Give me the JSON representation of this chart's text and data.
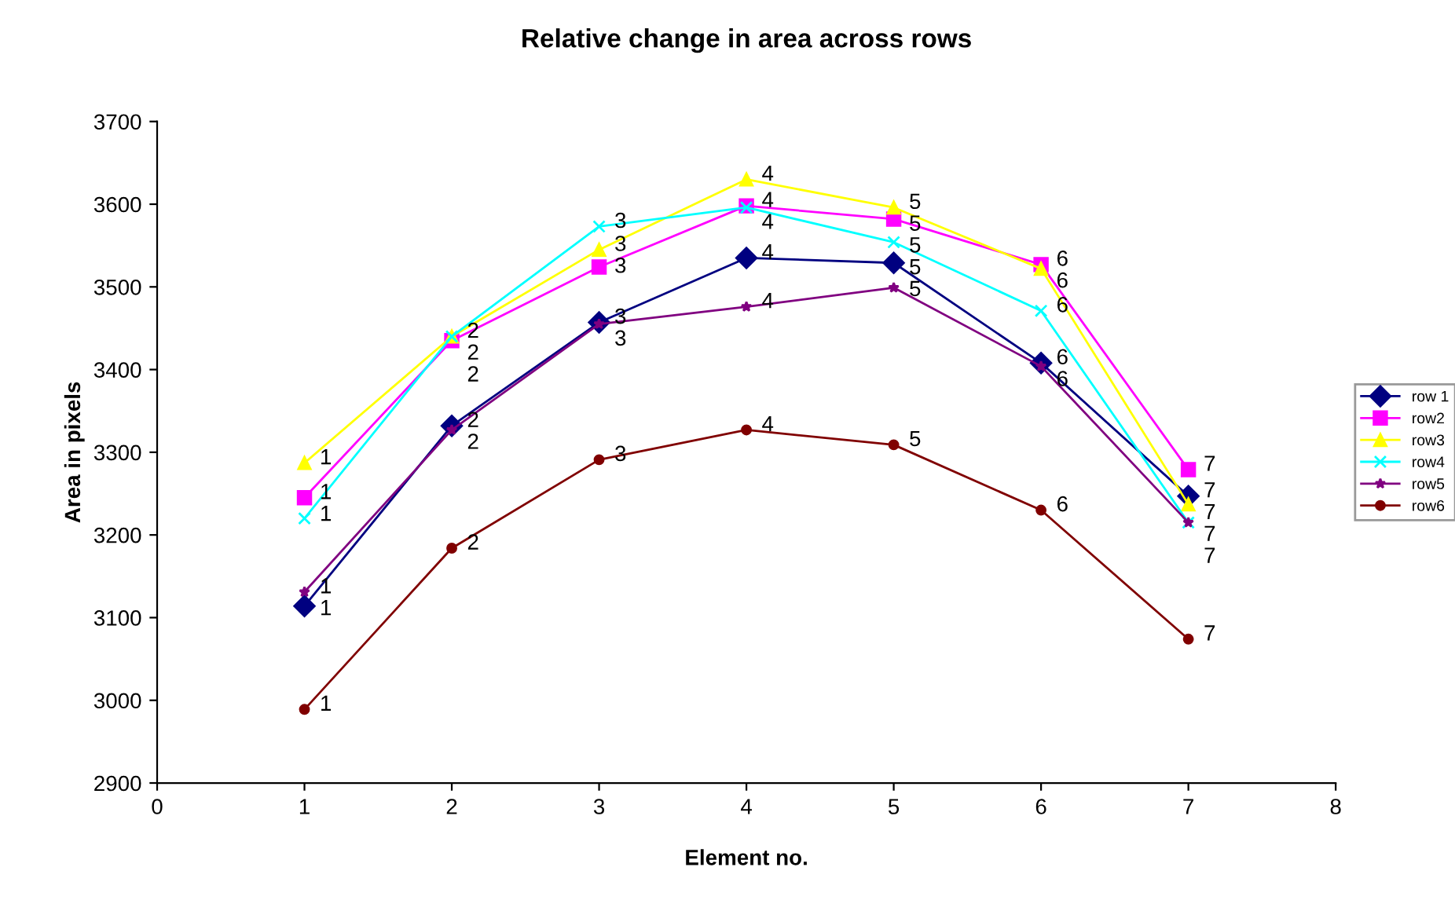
{
  "chart_data": {
    "type": "line",
    "title": "Relative change in area across rows",
    "xlabel": "Element no.",
    "ylabel": "Area in pixels",
    "x": [
      1,
      2,
      3,
      4,
      5,
      6,
      7
    ],
    "xlim": [
      0,
      8
    ],
    "xticks": [
      0,
      1,
      2,
      3,
      4,
      5,
      6,
      7,
      8
    ],
    "ylim": [
      2900,
      3700
    ],
    "yticks": [
      2900,
      3000,
      3100,
      3200,
      3300,
      3400,
      3500,
      3600,
      3700
    ],
    "grid": false,
    "legend": "right",
    "series": [
      {
        "name": "row 1",
        "color": "#000080",
        "marker": "diamond",
        "values": [
          3114,
          3332,
          3457,
          3535,
          3529,
          3408,
          3247
        ]
      },
      {
        "name": "row2",
        "color": "#ff00ff",
        "marker": "square",
        "values": [
          3245,
          3435,
          3524,
          3598,
          3582,
          3527,
          3279
        ]
      },
      {
        "name": "row3",
        "color": "#ffff00",
        "marker": "triangle",
        "values": [
          3287,
          3440,
          3545,
          3630,
          3596,
          3522,
          3237
        ]
      },
      {
        "name": "row4",
        "color": "#00ffff",
        "marker": "cross",
        "values": [
          3220,
          3440,
          3573,
          3596,
          3554,
          3471,
          3215
        ]
      },
      {
        "name": "row5",
        "color": "#800080",
        "marker": "star",
        "values": [
          3131,
          3327,
          3455,
          3476,
          3499,
          3404,
          3215
        ]
      },
      {
        "name": "row6",
        "color": "#800000",
        "marker": "circle",
        "values": [
          2989,
          3184,
          3291,
          3327,
          3309,
          3230,
          3074
        ]
      }
    ],
    "annotations": [
      {
        "text": "1",
        "x": 1,
        "y": 3114
      },
      {
        "text": "2",
        "x": 2,
        "y": 3332
      },
      {
        "text": "3",
        "x": 3,
        "y": 3457
      },
      {
        "text": "4",
        "x": 4,
        "y": 3535
      },
      {
        "text": "5",
        "x": 5,
        "y": 3529
      },
      {
        "text": "6",
        "x": 6,
        "y": 3408
      },
      {
        "text": "7",
        "x": 7,
        "y": 3247
      },
      {
        "text": "1",
        "x": 1,
        "y": 3245
      },
      {
        "text": "2",
        "x": 2,
        "y": 3435
      },
      {
        "text": "3",
        "x": 3,
        "y": 3524
      },
      {
        "text": "4",
        "x": 4,
        "y": 3598
      },
      {
        "text": "5",
        "x": 5,
        "y": 3582
      },
      {
        "text": "6",
        "x": 6,
        "y": 3527
      },
      {
        "text": "7",
        "x": 7,
        "y": 3279
      },
      {
        "text": "1",
        "x": 1,
        "y": 3287
      },
      {
        "text": "2",
        "x": 2,
        "y": 3440
      },
      {
        "text": "3",
        "x": 3,
        "y": 3545
      },
      {
        "text": "4",
        "x": 4,
        "y": 3630
      },
      {
        "text": "5",
        "x": 5,
        "y": 3596
      },
      {
        "text": "6",
        "x": 6,
        "y": 3522
      },
      {
        "text": "7",
        "x": 7,
        "y": 3237
      },
      {
        "text": "1",
        "x": 1,
        "y": 3220
      },
      {
        "text": "2",
        "x": 2,
        "y": 3440
      },
      {
        "text": "3",
        "x": 3,
        "y": 3573
      },
      {
        "text": "4",
        "x": 4,
        "y": 3596
      },
      {
        "text": "5",
        "x": 5,
        "y": 3554
      },
      {
        "text": "6",
        "x": 6,
        "y": 3471
      },
      {
        "text": "7",
        "x": 7,
        "y": 3215
      },
      {
        "text": "1",
        "x": 1,
        "y": 3131
      },
      {
        "text": "2",
        "x": 2,
        "y": 3327
      },
      {
        "text": "3",
        "x": 3,
        "y": 3455
      },
      {
        "text": "4",
        "x": 4,
        "y": 3476
      },
      {
        "text": "5",
        "x": 5,
        "y": 3499
      },
      {
        "text": "6",
        "x": 6,
        "y": 3404
      },
      {
        "text": "7",
        "x": 7,
        "y": 3215
      },
      {
        "text": "1",
        "x": 1,
        "y": 2989
      },
      {
        "text": "2",
        "x": 2,
        "y": 3184
      },
      {
        "text": "3",
        "x": 3,
        "y": 3291
      },
      {
        "text": "4",
        "x": 4,
        "y": 3327
      },
      {
        "text": "5",
        "x": 5,
        "y": 3309
      },
      {
        "text": "6",
        "x": 6,
        "y": 3230
      },
      {
        "text": "7",
        "x": 7,
        "y": 3074
      }
    ]
  }
}
